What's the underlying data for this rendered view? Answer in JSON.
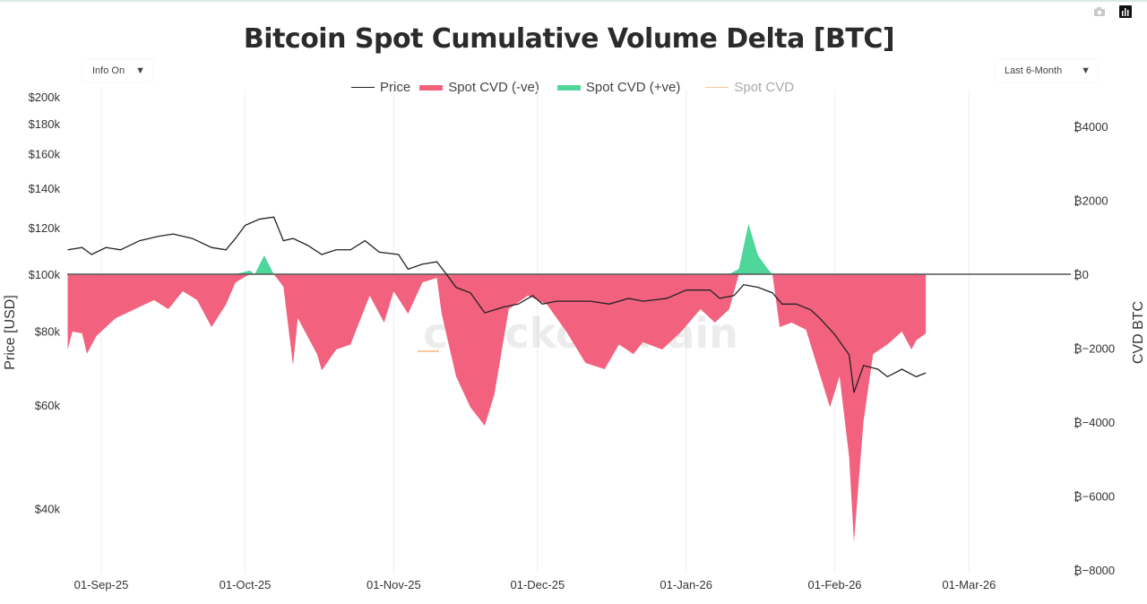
{
  "title": "Bitcoin Spot Cumulative Volume Delta [BTC]",
  "controls": {
    "info_dropdown": "Info On",
    "range_dropdown": "Last 6-Month",
    "dropdown_arrow": "▼"
  },
  "toolbar": {
    "icons": [
      "camera-icon",
      "chart-bars-icon"
    ]
  },
  "watermark": "checkonchain",
  "colors": {
    "price": "#222222",
    "cvd_neg": "#f2627f",
    "cvd_pos": "#4fd69a",
    "cvd_line": "#f7c99a",
    "grid": "#eeeeee"
  },
  "chart_data": {
    "type": "area",
    "title": "Bitcoin Spot Cumulative Volume Delta [BTC]",
    "x_unit": "days since 01-Sep-25",
    "xlim": [
      -7,
      203
    ],
    "x_ticks": [
      {
        "day": 0,
        "label": "01-Sep-25"
      },
      {
        "day": 30,
        "label": "01-Oct-25"
      },
      {
        "day": 61,
        "label": "01-Nov-25"
      },
      {
        "day": 91,
        "label": "01-Dec-25"
      },
      {
        "day": 122,
        "label": "01-Jan-26"
      },
      {
        "day": 153,
        "label": "01-Feb-26"
      },
      {
        "day": 181,
        "label": "01-Mar-26"
      }
    ],
    "y_left": {
      "label": "Price [USD]",
      "scale": "log",
      "range_k": [
        35,
        200
      ],
      "ticks": [
        {
          "v": 200,
          "label": "$200k"
        },
        {
          "v": 180,
          "label": "$180k"
        },
        {
          "v": 160,
          "label": "$160k"
        },
        {
          "v": 140,
          "label": "$140k"
        },
        {
          "v": 120,
          "label": "$120k"
        },
        {
          "v": 100,
          "label": "$100k"
        },
        {
          "v": 80,
          "label": "$80k"
        },
        {
          "v": 60,
          "label": "$60k"
        },
        {
          "v": 40,
          "label": "$40k"
        }
      ]
    },
    "y_right": {
      "label": "CVD BTC",
      "range": [
        -8000,
        4000
      ],
      "ticks": [
        {
          "v": 4000,
          "label": "₿4000"
        },
        {
          "v": 2000,
          "label": "₿2000"
        },
        {
          "v": 0,
          "label": "₿0"
        },
        {
          "v": -2000,
          "label": "₿−2000"
        },
        {
          "v": -4000,
          "label": "₿−4000"
        },
        {
          "v": -6000,
          "label": "₿−6000"
        },
        {
          "v": -8000,
          "label": "₿−8000"
        }
      ]
    },
    "legend": {
      "position": "top-center",
      "entries": [
        "Price",
        "Spot CVD (-ve)",
        "Spot CVD (+ve)",
        "Spot CVD"
      ]
    },
    "series": [
      {
        "name": "Price",
        "unit": "USD k",
        "x": [
          -7,
          -4,
          -2,
          1,
          4,
          8,
          12,
          15,
          19,
          23,
          26,
          28,
          30,
          33,
          36,
          38,
          40,
          43,
          46,
          49,
          52,
          55,
          58,
          62,
          64,
          67,
          70,
          72,
          74,
          77,
          80,
          84,
          87,
          90,
          92,
          95,
          99,
          102,
          106,
          110,
          113,
          118,
          122,
          127,
          129,
          132,
          134,
          137,
          140,
          142,
          145,
          148,
          150,
          153,
          156,
          157,
          159,
          162,
          164,
          167,
          170,
          172
        ],
        "y": [
          110,
          111,
          108,
          111,
          110,
          114,
          116,
          117,
          115,
          111,
          110,
          115,
          121,
          124,
          125,
          114,
          115,
          112,
          108,
          110,
          110,
          114,
          109,
          108,
          102,
          104,
          105,
          100,
          95,
          93,
          86,
          88,
          89,
          92,
          89,
          90,
          90,
          90,
          89,
          91,
          90,
          91,
          94,
          94,
          91,
          92,
          96,
          95,
          93,
          89,
          89,
          87,
          84,
          79,
          73,
          63,
          70,
          69,
          67,
          69,
          67,
          68
        ]
      },
      {
        "name": "Spot CVD",
        "unit": "BTC",
        "x": [
          -7,
          -6,
          -4,
          -3,
          -1,
          3,
          7,
          11,
          14,
          17,
          20,
          23,
          26,
          28,
          31,
          32,
          34,
          36,
          38,
          40,
          41,
          45,
          46,
          49,
          52,
          56,
          59,
          61,
          64,
          67,
          70,
          71,
          74,
          77,
          80,
          82,
          85,
          89,
          93,
          97,
          101,
          105,
          108,
          111,
          113,
          117,
          121,
          125,
          128,
          131,
          133,
          135,
          137,
          139,
          140,
          141.5,
          144,
          147,
          150,
          152,
          154,
          156,
          157,
          159,
          161,
          164,
          167,
          169,
          170,
          172
        ],
        "y": [
          -2036,
          -1550,
          -1600,
          -2150,
          -1670,
          -1190,
          -945,
          -700,
          -945,
          -460,
          -700,
          -1430,
          -825,
          -220,
          100,
          0,
          510,
          0,
          -340,
          -2470,
          -1190,
          -2160,
          -2600,
          -2040,
          -1900,
          -580,
          -1310,
          -460,
          -1070,
          -220,
          -100,
          -1070,
          -2760,
          -3600,
          -4100,
          -3250,
          -945,
          -580,
          -825,
          -1550,
          -2400,
          -2570,
          -1900,
          -2160,
          -1840,
          -2036,
          -1550,
          -945,
          -1310,
          -945,
          145,
          1360,
          510,
          145,
          0,
          -1430,
          -1310,
          -1500,
          -2760,
          -3600,
          -2760,
          -4950,
          -7250,
          -3980,
          -2160,
          -1900,
          -1550,
          -2036,
          -1790,
          -1600
        ]
      }
    ]
  }
}
